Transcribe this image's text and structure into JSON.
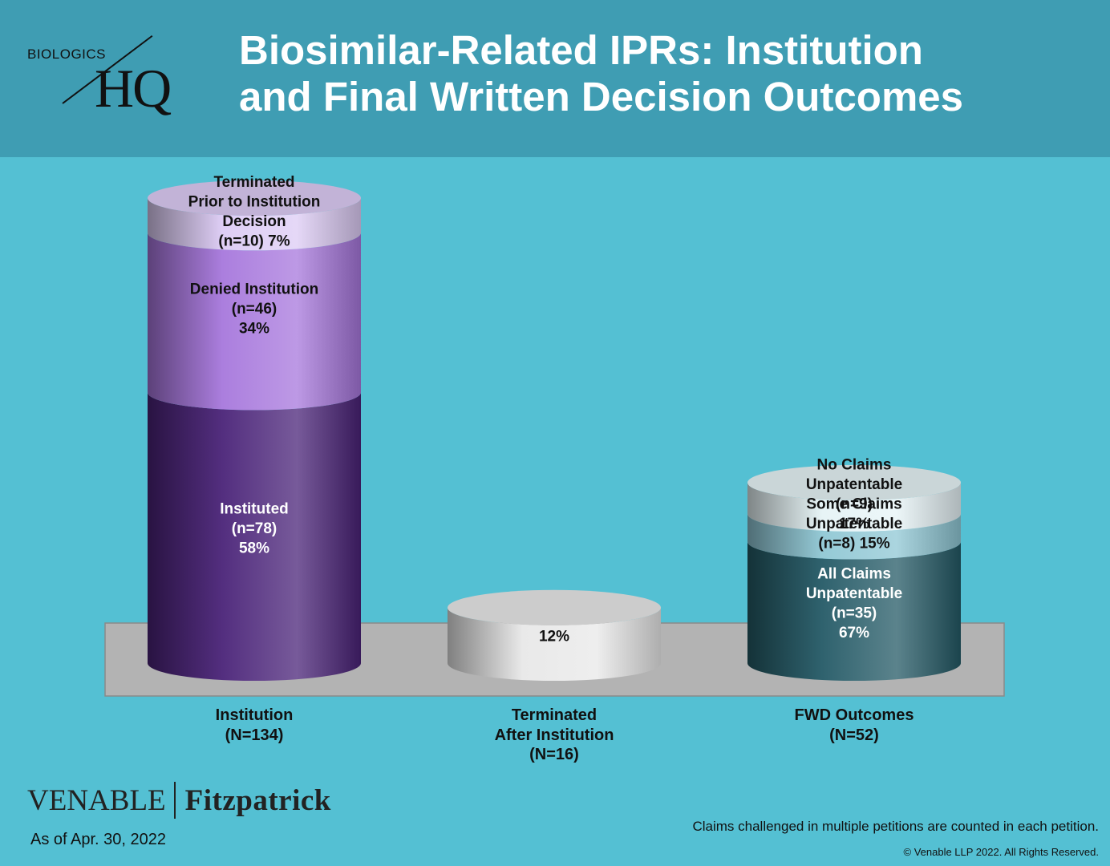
{
  "header": {
    "logo_top": "BIOLOGICS",
    "logo_hq": "HQ",
    "title_line1": "Biosimilar-Related IPRs: Institution",
    "title_line2": "and Final Written Decision Outcomes"
  },
  "colors": {
    "header_bg": "#3f9db3",
    "page_bg": "#54c0d3",
    "platform": "#b3b3b3",
    "instituted": "#4a2378",
    "denied": "#a777dc",
    "terminated_prior": "#dccbf4",
    "terminated_after": "#e8e8e8",
    "all_claims": "#245a66",
    "some_claims": "#8fc7d4",
    "no_claims": "#e6f3f6"
  },
  "chart_data": {
    "type": "bar",
    "stacked": true,
    "categories": [
      {
        "lines": [
          "Institution",
          "(N=134)"
        ]
      },
      {
        "lines": [
          "Terminated",
          "After Institution",
          "(N=16)"
        ]
      },
      {
        "lines": [
          "FWD Outcomes",
          "(N=52)"
        ]
      }
    ],
    "bars": [
      {
        "total": 134,
        "segments": [
          {
            "lines": [
              "Instituted",
              "(n=78)",
              "58%"
            ],
            "n": 78,
            "percent": 58,
            "color": "#4a2378",
            "text_color": "#ffffff"
          },
          {
            "lines": [
              "Denied Institution",
              "(n=46)",
              "34%"
            ],
            "n": 46,
            "percent": 34,
            "color": "#a777dc",
            "text_color": "#111111"
          },
          {
            "lines": [
              "Terminated",
              "Prior to Institution",
              "Decision",
              "(n=10) 7%"
            ],
            "n": 10,
            "percent": 7,
            "color": "#dccbf4",
            "text_color": "#111111"
          }
        ]
      },
      {
        "total": 16,
        "segments": [
          {
            "lines": [
              "12%"
            ],
            "n": 16,
            "percent": 12,
            "color": "#e8e8e8",
            "text_color": "#111111"
          }
        ]
      },
      {
        "total": 52,
        "segments": [
          {
            "lines": [
              "All Claims",
              "Unpatentable",
              "(n=35)",
              "67%"
            ],
            "n": 35,
            "percent": 67,
            "color": "#245a66",
            "text_color": "#ffffff"
          },
          {
            "lines": [
              "Some Claims",
              "Unpatentable",
              "(n=8) 15%"
            ],
            "n": 8,
            "percent": 15,
            "color": "#8fc7d4",
            "text_color": "#111111"
          },
          {
            "lines": [
              "No Claims",
              "Unpatentable",
              "(n=9)",
              "17%"
            ],
            "n": 9,
            "percent": 17,
            "color": "#e6f3f6",
            "text_color": "#111111"
          }
        ]
      }
    ],
    "ylim": [
      0,
      100
    ]
  },
  "footer": {
    "venable": "VENABLE",
    "fitzpatrick": "Fitzpatrick",
    "as_of": "As of Apr. 30, 2022",
    "note": "Claims challenged in multiple petitions are counted in each petition.",
    "copyright": "© Venable LLP 2022. All Rights Reserved."
  }
}
